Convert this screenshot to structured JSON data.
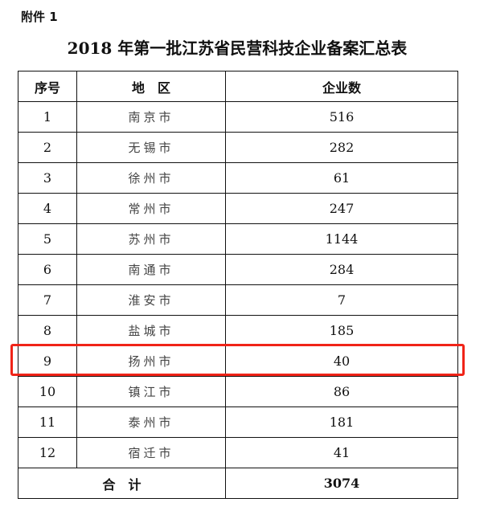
{
  "attachment": "附件 1",
  "title": "2018 年第一批江苏省民营科技企业备案汇总表",
  "headers": [
    "序号",
    "地　区",
    "企业数"
  ],
  "rows": [
    {
      "no": "1",
      "city": "南京市",
      "count": "516"
    },
    {
      "no": "2",
      "city": "无锡市",
      "count": "282"
    },
    {
      "no": "3",
      "city": "徐州市",
      "count": "61"
    },
    {
      "no": "4",
      "city": "常州市",
      "count": "247"
    },
    {
      "no": "5",
      "city": "苏州市",
      "count": "1144"
    },
    {
      "no": "6",
      "city": "南通市",
      "count": "284"
    },
    {
      "no": "7",
      "city": "淮安市",
      "count": "7"
    },
    {
      "no": "8",
      "city": "盐城市",
      "count": "185"
    },
    {
      "no": "9",
      "city": "扬州市",
      "count": "40"
    },
    {
      "no": "10",
      "city": "镇江市",
      "count": "86"
    },
    {
      "no": "11",
      "city": "泰州市",
      "count": "181"
    },
    {
      "no": "12",
      "city": "宿迁市",
      "count": "41"
    }
  ],
  "total": {
    "label": "合　计",
    "count": "3074"
  },
  "highlight_color": "#f02418"
}
